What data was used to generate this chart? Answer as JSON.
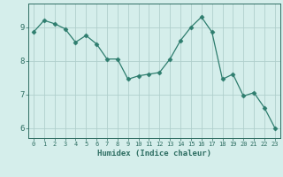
{
  "x": [
    0,
    1,
    2,
    3,
    4,
    5,
    6,
    7,
    8,
    9,
    10,
    11,
    12,
    13,
    14,
    15,
    16,
    17,
    18,
    19,
    20,
    21,
    22,
    23
  ],
  "y": [
    8.85,
    9.2,
    9.1,
    8.95,
    8.55,
    8.75,
    8.5,
    8.05,
    8.05,
    7.45,
    7.55,
    7.6,
    7.65,
    8.05,
    8.6,
    9.0,
    9.3,
    8.85,
    7.45,
    7.6,
    6.95,
    7.05,
    6.6,
    6.0
  ],
  "line_color": "#2e7d6e",
  "marker": "D",
  "marker_size": 2.5,
  "background_color": "#d5eeeb",
  "grid_color": "#b0cfcc",
  "axis_color": "#2e6e62",
  "xlabel": "Humidex (Indice chaleur)",
  "xlim": [
    -0.5,
    23.5
  ],
  "ylim": [
    5.7,
    9.7
  ],
  "yticks": [
    6,
    7,
    8,
    9
  ],
  "xticks": [
    0,
    1,
    2,
    3,
    4,
    5,
    6,
    7,
    8,
    9,
    10,
    11,
    12,
    13,
    14,
    15,
    16,
    17,
    18,
    19,
    20,
    21,
    22,
    23
  ]
}
